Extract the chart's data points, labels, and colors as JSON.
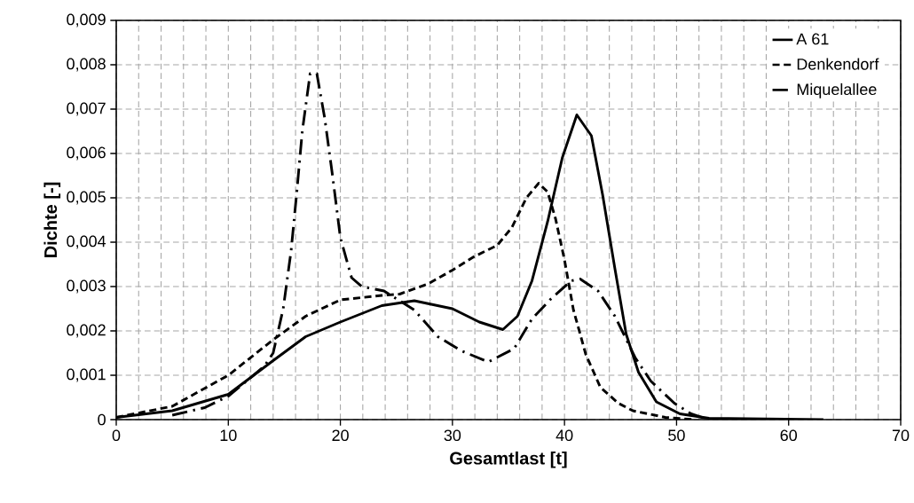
{
  "chart_data": {
    "type": "line",
    "xlabel": "Gesamtlast [t]",
    "ylabel": "Dichte [-]",
    "xlim": [
      0,
      70
    ],
    "ylim": [
      0,
      0.009
    ],
    "xticks": [
      0,
      10,
      20,
      30,
      40,
      50,
      60,
      70
    ],
    "yticks": [
      {
        "value": 0,
        "label": "0"
      },
      {
        "value": 0.001,
        "label": "0,001"
      },
      {
        "value": 0.002,
        "label": "0,002"
      },
      {
        "value": 0.003,
        "label": "0,003"
      },
      {
        "value": 0.004,
        "label": "0,004"
      },
      {
        "value": 0.005,
        "label": "0,005"
      },
      {
        "value": 0.006,
        "label": "0,006"
      },
      {
        "value": 0.007,
        "label": "0,007"
      },
      {
        "value": 0.008,
        "label": "0,008"
      },
      {
        "value": 0.009,
        "label": "0,009"
      }
    ],
    "grid": true,
    "legend": "top right",
    "marker": "none",
    "series": [
      {
        "name": "A 61",
        "color": "#000000",
        "line_style": "solid",
        "x": [
          0,
          5,
          10,
          14,
          16.9,
          20,
          23.7,
          26.6,
          30,
          32.4,
          34.5,
          35.8,
          37.1,
          38.5,
          39.8,
          41.1,
          42.4,
          43.4,
          44.5,
          45.5,
          46.6,
          48.2,
          50.3,
          52.9,
          63.1
        ],
        "values": [
          5e-05,
          0.0002,
          0.00057,
          0.00133,
          0.00187,
          0.0022,
          0.00257,
          0.00268,
          0.0025,
          0.0022,
          0.00203,
          0.00233,
          0.00313,
          0.00447,
          0.0059,
          0.00687,
          0.0064,
          0.00507,
          0.0034,
          0.00193,
          0.00107,
          0.0004,
          0.00013,
          3e-05,
          0
        ]
      },
      {
        "name": "Denkendorf",
        "color": "#000000",
        "line_style": "dashed",
        "x": [
          0,
          5,
          10,
          14,
          16.9,
          20,
          23.7,
          25.3,
          27.9,
          30,
          31.9,
          34,
          35.3,
          36.6,
          37.7,
          38.5,
          39.2,
          40,
          40.8,
          41.9,
          43.2,
          44.8,
          46.1,
          49,
          51.6
        ],
        "values": [
          5e-05,
          0.0003,
          0.001,
          0.0018,
          0.00233,
          0.0027,
          0.0028,
          0.00283,
          0.00307,
          0.00337,
          0.00367,
          0.00393,
          0.00433,
          0.005,
          0.00533,
          0.00513,
          0.00453,
          0.0036,
          0.00247,
          0.00147,
          0.00073,
          0.00037,
          0.0002,
          5e-05,
          0
        ]
      },
      {
        "name": "Miquelallee",
        "color": "#000000",
        "line_style": "dashdotted",
        "x": [
          5,
          7.9,
          10,
          13.2,
          14,
          14.9,
          15.6,
          16.1,
          16.6,
          17.3,
          17.9,
          18.6,
          19.3,
          20,
          21,
          21.9,
          23.9,
          26.6,
          28.7,
          30.8,
          33.2,
          35.5,
          37.1,
          38.7,
          40.6,
          41.4,
          43,
          44.5,
          46.3,
          47.7,
          49.8,
          51.3,
          52.9
        ],
        "values": [
          0.0001,
          0.00027,
          0.00053,
          0.0012,
          0.0015,
          0.0025,
          0.0038,
          0.0051,
          0.0065,
          0.0078,
          0.0078,
          0.0068,
          0.0055,
          0.0041,
          0.0032,
          0.003,
          0.0029,
          0.00247,
          0.00187,
          0.00155,
          0.0013,
          0.0016,
          0.00227,
          0.0027,
          0.00313,
          0.00317,
          0.0029,
          0.00233,
          0.0014,
          0.00087,
          0.00037,
          0.00013,
          0
        ]
      }
    ]
  }
}
